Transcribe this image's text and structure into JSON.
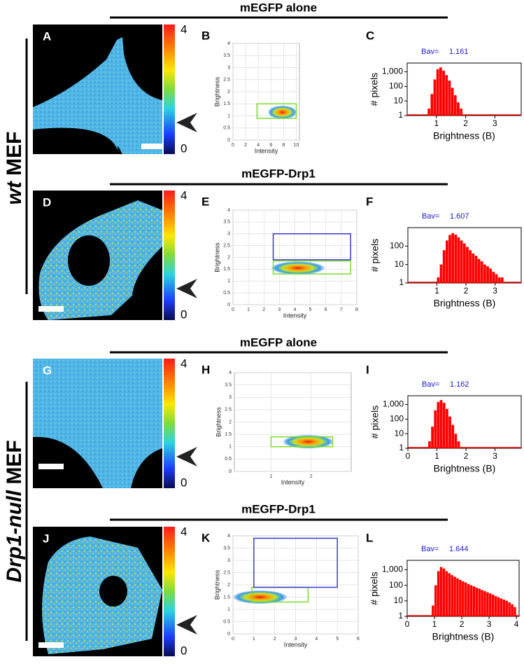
{
  "side_labels": [
    {
      "italic": "wt",
      "text": "MEF"
    },
    {
      "italic": "Drp1-null",
      "text": "MEF"
    }
  ],
  "rows": [
    {
      "header": "mEGFP alone",
      "image": {
        "letter": "A",
        "colorbar_ticks": [
          4,
          0
        ]
      },
      "scatter": {
        "type": "scatter",
        "letter": "B",
        "xlabel": "Intensity",
        "ylabel": "Brightness",
        "xlim": [
          0,
          10.5
        ],
        "ylim": [
          0,
          4
        ],
        "xticks": [
          0,
          2,
          4,
          6,
          8,
          10
        ],
        "yticks": [
          0,
          0.5,
          1,
          1.5,
          2,
          2.5,
          3,
          3.5,
          4
        ],
        "log_x": false,
        "cloud": {
          "x": 7.8,
          "y": 1.15
        },
        "gates": [
          {
            "color": "#7ddc2a",
            "x": [
              3.8,
              10
            ],
            "y": [
              0.9,
              1.5
            ]
          }
        ]
      },
      "histogram": {
        "type": "bar",
        "letter": "C",
        "annotation": "Bav=",
        "bav": 1.161,
        "ylabel": "# pixels",
        "xlabel": "Brightness (B)",
        "color": "#ff0000",
        "xlim": [
          0,
          3.9
        ],
        "ylim": [
          1,
          4000
        ],
        "log_y": true,
        "xticks": [
          1,
          2,
          3
        ],
        "yticks": [
          1,
          10,
          100,
          {
            "value": 1000,
            "label": "1,000"
          }
        ],
        "bins": [
          0.7,
          0.8,
          0.9,
          1.0,
          1.1,
          1.2,
          1.3,
          1.4,
          1.5,
          1.6,
          1.7,
          1.8,
          1.9,
          2.0
        ],
        "counts": [
          3,
          30,
          300,
          1500,
          2000,
          1200,
          600,
          250,
          80,
          25,
          8,
          3,
          1
        ]
      }
    },
    {
      "header": "mEGFP-Drp1",
      "image": {
        "letter": "D",
        "colorbar_ticks": [
          4,
          0
        ]
      },
      "scatter": {
        "type": "scatter",
        "letter": "E",
        "xlabel": "Intensity",
        "ylabel": "Brightness",
        "xlim": [
          0,
          8
        ],
        "ylim": [
          0,
          4
        ],
        "xticks": [
          0,
          1,
          2,
          3,
          4,
          5,
          6,
          7,
          8
        ],
        "yticks": [
          0,
          0.5,
          1,
          1.5,
          2,
          2.5,
          3,
          3.5,
          4
        ],
        "log_x": false,
        "cloud": {
          "x": 4.2,
          "y": 1.55
        },
        "gates": [
          {
            "color": "#7ddc2a",
            "x": [
              2.6,
              7.6
            ],
            "y": [
              1.3,
              1.85
            ]
          },
          {
            "color": "#3a3acc",
            "x": [
              2.6,
              7.6
            ],
            "y": [
              1.9,
              3
            ]
          }
        ]
      },
      "histogram": {
        "type": "bar",
        "letter": "F",
        "annotation": "Bav=",
        "bav": 1.607,
        "ylabel": "# pixels",
        "xlabel": "Brightness (B)",
        "color": "#ff0000",
        "xlim": [
          0,
          3.9
        ],
        "ylim": [
          1,
          1000
        ],
        "log_y": true,
        "xticks": [
          1,
          2,
          3
        ],
        "yticks": [
          1,
          10,
          100
        ],
        "bins": [
          1.0,
          1.1,
          1.2,
          1.3,
          1.4,
          1.5,
          1.6,
          1.7,
          1.8,
          1.9,
          2.0,
          2.1,
          2.2,
          2.3,
          2.4,
          2.5,
          2.6,
          2.7,
          2.8,
          2.9,
          3.0,
          3.1,
          3.2,
          3.3,
          3.4,
          3.5
        ],
        "counts": [
          2,
          10,
          60,
          200,
          400,
          500,
          420,
          300,
          200,
          140,
          90,
          60,
          40,
          30,
          20,
          15,
          10,
          8,
          6,
          4,
          3,
          2,
          2,
          1,
          1
        ]
      }
    },
    {
      "header": "mEGFP alone",
      "image": {
        "letter": "G",
        "colorbar_ticks": [
          4,
          0
        ]
      },
      "scatter": {
        "type": "scatter",
        "letter": "H",
        "xlabel": "Intensity",
        "ylabel": "Brightness",
        "xlim": [
          0.53,
          4
        ],
        "ylim": [
          0,
          4
        ],
        "xticks": [
          1,
          2
        ],
        "yticks": [
          0,
          0.5,
          1,
          1.5,
          2,
          2.5,
          3,
          3.5,
          4
        ],
        "log_x": true,
        "cloud": {
          "x": 1.9,
          "y": 1.2
        },
        "gates": [
          {
            "color": "#7ddc2a",
            "x": [
              1,
              2.9
            ],
            "y": [
              1,
              1.4
            ]
          }
        ]
      },
      "histogram": {
        "type": "bar",
        "letter": "I",
        "annotation": "Bav=",
        "bav": 1.162,
        "ylabel": "# pixels",
        "xlabel": "Brightness (B)",
        "color": "#ff0000",
        "xlim": [
          0,
          3.9
        ],
        "ylim": [
          1,
          4000
        ],
        "log_y": true,
        "xticks": [
          0,
          1,
          2,
          3
        ],
        "yticks": [
          1,
          10,
          100,
          {
            "value": 1000,
            "label": "1,000"
          }
        ],
        "bins": [
          0.7,
          0.8,
          0.9,
          1.0,
          1.1,
          1.2,
          1.3,
          1.4,
          1.5,
          1.6,
          1.7,
          1.8,
          1.9
        ],
        "counts": [
          3,
          30,
          400,
          1500,
          2000,
          1300,
          500,
          150,
          40,
          10,
          3,
          1
        ]
      }
    },
    {
      "header": "mEGFP-Drp1",
      "image": {
        "letter": "J",
        "colorbar_ticks": [
          4,
          0
        ]
      },
      "scatter": {
        "type": "scatter",
        "letter": "K",
        "xlabel": "Intensity",
        "ylabel": "Brightness",
        "xlim": [
          0,
          6
        ],
        "ylim": [
          0,
          4
        ],
        "xticks": [
          0,
          1,
          2,
          3,
          4,
          5,
          6
        ],
        "yticks": [
          0,
          0.5,
          1,
          1.5,
          2,
          2.5,
          3,
          3.5,
          4
        ],
        "log_x": false,
        "cloud": {
          "x": 1.3,
          "y": 1.5
        },
        "gates": [
          {
            "color": "#7ddc2a",
            "x": [
              0.9,
              3.6
            ],
            "y": [
              1.3,
              1.9
            ]
          },
          {
            "color": "#3a3acc",
            "x": [
              1,
              5
            ],
            "y": [
              1.9,
              3.9
            ]
          }
        ]
      },
      "histogram": {
        "type": "bar",
        "letter": "L",
        "annotation": "Bav=",
        "bav": 1.644,
        "ylabel": "# pixels",
        "xlabel": "Brightness (B)",
        "color": "#ff0000",
        "xlim": [
          0,
          4.1
        ],
        "ylim": [
          1,
          4000
        ],
        "log_y": true,
        "xticks": [
          0,
          1,
          2,
          3,
          4
        ],
        "yticks": [
          1,
          10,
          100,
          {
            "value": 1000,
            "label": "1,000"
          }
        ],
        "bins": [
          0.9,
          1.0,
          1.1,
          1.2,
          1.3,
          1.4,
          1.5,
          1.6,
          1.7,
          1.8,
          1.9,
          2.0,
          2.1,
          2.2,
          2.3,
          2.4,
          2.5,
          2.6,
          2.7,
          2.8,
          2.9,
          3.0,
          3.1,
          3.2,
          3.3,
          3.4,
          3.5,
          3.6,
          3.7,
          3.8,
          3.9,
          4.0
        ],
        "counts": [
          5,
          100,
          800,
          1500,
          1200,
          800,
          600,
          450,
          350,
          280,
          220,
          180,
          150,
          120,
          100,
          85,
          70,
          60,
          50,
          42,
          35,
          30,
          25,
          20,
          17,
          14,
          12,
          10,
          8,
          6,
          4
        ]
      }
    }
  ]
}
